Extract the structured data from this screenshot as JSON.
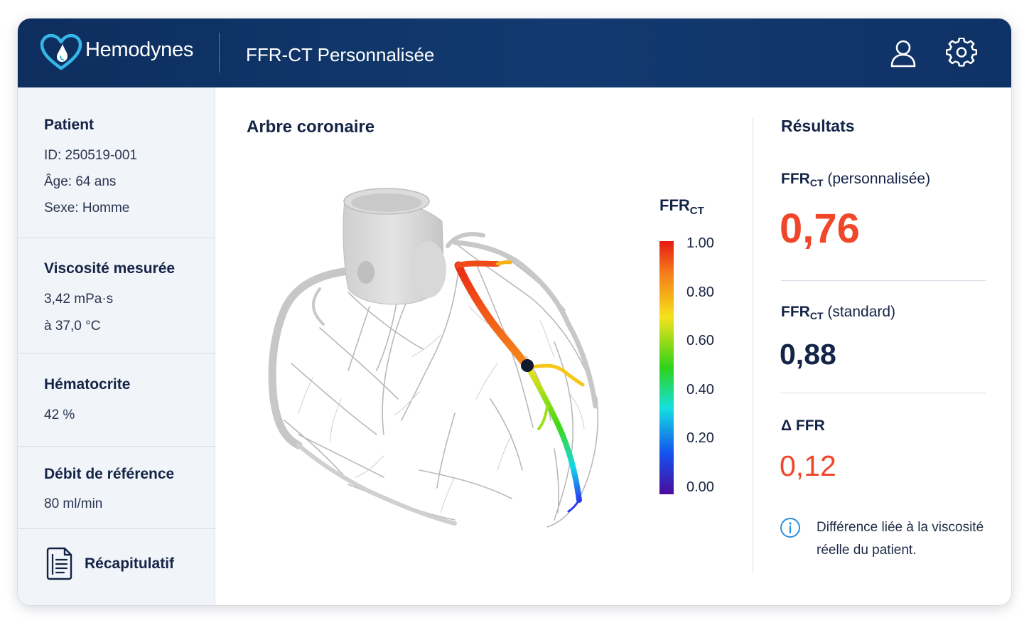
{
  "header": {
    "brand": "Hemodynes",
    "app_title": "FFR-CT Personnalisée"
  },
  "sidebar": {
    "patient": {
      "title": "Patient",
      "id": "ID: 250519-001",
      "age": "Âge: 64 ans",
      "sex": "Sexe: Homme"
    },
    "viscosity": {
      "title": "Viscosité mesurée",
      "value": "3,42 mPa·s",
      "temperature": "à 37,0 °C"
    },
    "hematocrit": {
      "title": "Hématocrite",
      "value": "42 %"
    },
    "flow": {
      "title": "Débit de référence",
      "value": "80 ml/min"
    },
    "summary_label": "Récapitulatif"
  },
  "main": {
    "title": "Arbre coronaire",
    "scale": {
      "title": "FFR",
      "title_sub": "CT",
      "ticks": [
        "1.00",
        "0.80",
        "0.60",
        "0.40",
        "0.20",
        "0.00"
      ]
    }
  },
  "results": {
    "title": "Résultats",
    "personalized": {
      "label_main": "FFR",
      "label_sub": "CT",
      "label_suffix": " (personnalisée)",
      "value": "0,76"
    },
    "standard": {
      "label_main": "FFR",
      "label_sub": "CT",
      "label_suffix": " (standard)",
      "value": "0,88"
    },
    "delta": {
      "label": "Δ FFR",
      "value": "0,12"
    },
    "note": "Différence liée à la viscosité réelle du patient."
  },
  "colors": {
    "header_bg": "#0f3266",
    "accent_red": "#f0472a",
    "logo_cyan": "#35b6e8",
    "info_blue": "#2b8fe0"
  },
  "icons": {
    "logo": "heart-drop-icon",
    "user": "user-icon",
    "settings": "gear-icon",
    "summary": "document-icon",
    "info": "info-icon"
  }
}
